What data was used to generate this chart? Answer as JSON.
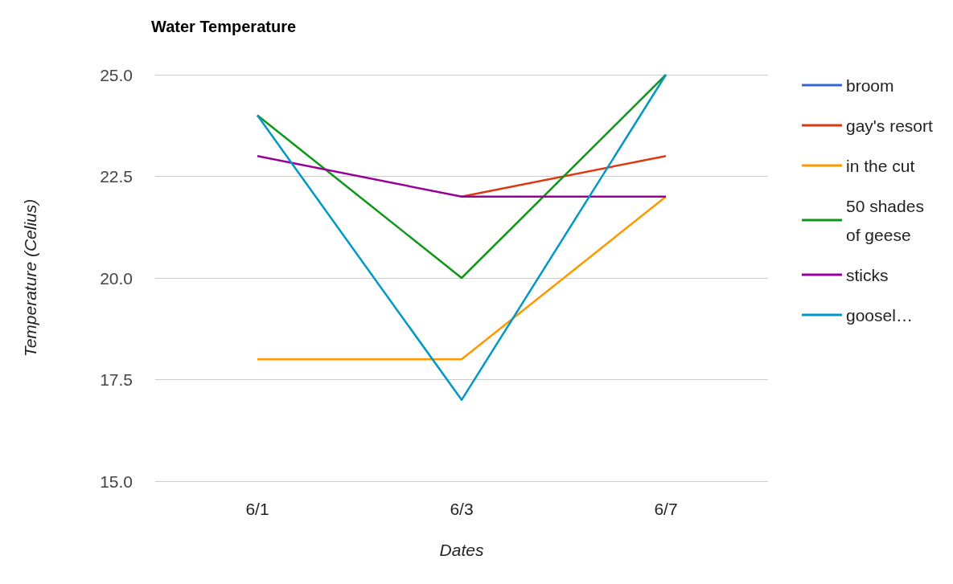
{
  "chart_data": {
    "type": "line",
    "title": "Water Temperature",
    "xlabel": "Dates",
    "ylabel": "Temperature (Celius)",
    "categories": [
      "6/1",
      "6/3",
      "6/7"
    ],
    "series": [
      {
        "name": "broom",
        "color": "#3366cc",
        "values": [
          null,
          null,
          null
        ]
      },
      {
        "name": "gay's resort",
        "color": "#dc3912",
        "values": [
          null,
          22,
          23
        ]
      },
      {
        "name": "in the cut",
        "color": "#ff9900",
        "values": [
          18,
          18,
          22
        ]
      },
      {
        "name": "50 shades of geese",
        "color": "#109618",
        "values": [
          24,
          20,
          25
        ]
      },
      {
        "name": "sticks",
        "color": "#990099",
        "values": [
          23,
          22,
          22
        ]
      },
      {
        "name": "goosel…",
        "color": "#0099c6",
        "values": [
          24,
          17,
          25
        ]
      }
    ],
    "ylim": [
      15,
      25
    ],
    "yticks": [
      {
        "value": 15,
        "label": "15.0"
      },
      {
        "value": 17.5,
        "label": "17.5"
      },
      {
        "value": 20,
        "label": "20.0"
      },
      {
        "value": 22.5,
        "label": "22.5"
      },
      {
        "value": 25,
        "label": "25.0"
      }
    ],
    "grid": "y",
    "legend": "right",
    "marker": "none",
    "line_style": "solid"
  }
}
